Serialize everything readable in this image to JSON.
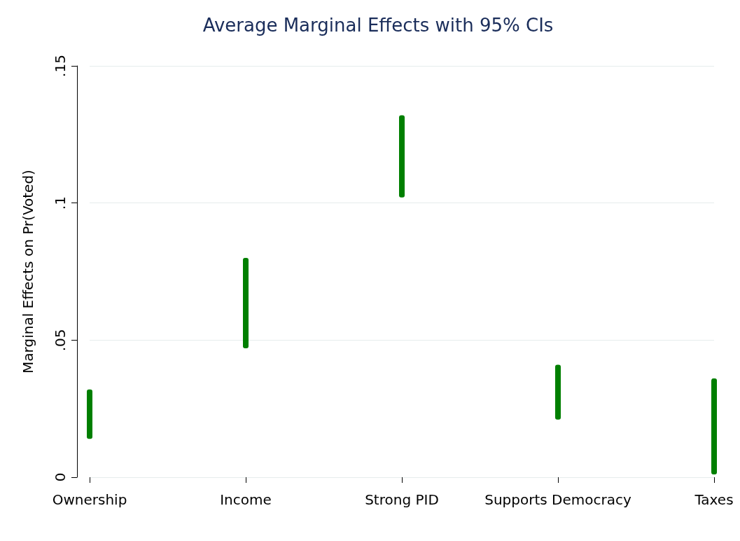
{
  "chart_data": {
    "type": "bar",
    "title": "Average Marginal Effects with 95% CIs",
    "ylabel": "Marginal Effects on Pr(Voted)",
    "categories": [
      "Ownership",
      "Income",
      "Strong PID",
      "Supports Democracy",
      "Taxes"
    ],
    "base": [
      0.014,
      0.047,
      0.102,
      0.021,
      0.001
    ],
    "values": [
      0.018,
      0.033,
      0.03,
      0.02,
      0.035
    ],
    "color": "#007f00",
    "ylim": [
      0,
      0.15
    ],
    "yticks": [
      {
        "value": 0,
        "label": "0"
      },
      {
        "value": 0.05,
        "label": ".05"
      },
      {
        "value": 0.1,
        "label": ".1"
      },
      {
        "value": 0.15,
        "label": ".15"
      }
    ],
    "grid": "y"
  }
}
